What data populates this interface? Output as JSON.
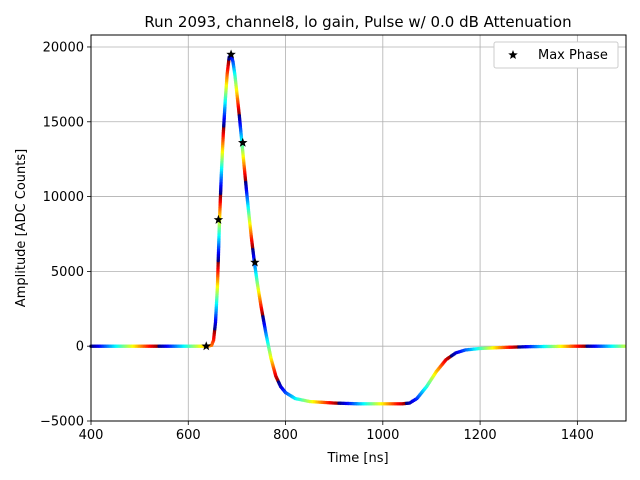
{
  "chart_data": {
    "type": "scatter",
    "title": "Run 2093, channel8, lo gain, Pulse w/ 0.0 dB Attenuation",
    "xlabel": "Time [ns]",
    "ylabel": "Amplitude [ADC Counts]",
    "xlim": [
      400,
      1500
    ],
    "ylim": [
      -5000,
      20800
    ],
    "x_ticks": [
      400,
      600,
      800,
      1000,
      1200,
      1400
    ],
    "y_ticks": [
      -5000,
      0,
      5000,
      10000,
      15000,
      20000
    ],
    "grid": true,
    "legend_position": "top-right",
    "colormap": "jet",
    "pulse_curve": [
      [
        400,
        0
      ],
      [
        500,
        0
      ],
      [
        600,
        0
      ],
      [
        630,
        0
      ],
      [
        640,
        0
      ],
      [
        648,
        60
      ],
      [
        652,
        400
      ],
      [
        656,
        1600
      ],
      [
        660,
        4000
      ],
      [
        664,
        8200
      ],
      [
        668,
        11500
      ],
      [
        672,
        14200
      ],
      [
        676,
        16400
      ],
      [
        680,
        18200
      ],
      [
        684,
        19300
      ],
      [
        688,
        19500
      ],
      [
        692,
        19000
      ],
      [
        696,
        18100
      ],
      [
        700,
        16900
      ],
      [
        705,
        15400
      ],
      [
        710,
        13700
      ],
      [
        715,
        12000
      ],
      [
        720,
        10300
      ],
      [
        725,
        8700
      ],
      [
        730,
        7200
      ],
      [
        736,
        5600
      ],
      [
        742,
        4200
      ],
      [
        750,
        2600
      ],
      [
        760,
        800
      ],
      [
        770,
        -800
      ],
      [
        780,
        -2000
      ],
      [
        790,
        -2700
      ],
      [
        800,
        -3100
      ],
      [
        820,
        -3500
      ],
      [
        850,
        -3700
      ],
      [
        900,
        -3800
      ],
      [
        950,
        -3850
      ],
      [
        1000,
        -3850
      ],
      [
        1040,
        -3850
      ],
      [
        1055,
        -3800
      ],
      [
        1070,
        -3500
      ],
      [
        1090,
        -2700
      ],
      [
        1110,
        -1700
      ],
      [
        1130,
        -900
      ],
      [
        1150,
        -450
      ],
      [
        1170,
        -250
      ],
      [
        1200,
        -150
      ],
      [
        1250,
        -80
      ],
      [
        1300,
        -30
      ],
      [
        1400,
        0
      ],
      [
        1500,
        0
      ]
    ],
    "series": [
      {
        "name": "Max Phase",
        "marker": "star",
        "color": "#000000",
        "points": [
          [
            637,
            0
          ],
          [
            662,
            8450
          ],
          [
            688,
            19500
          ],
          [
            712,
            13600
          ],
          [
            737,
            5600
          ]
        ]
      }
    ]
  }
}
